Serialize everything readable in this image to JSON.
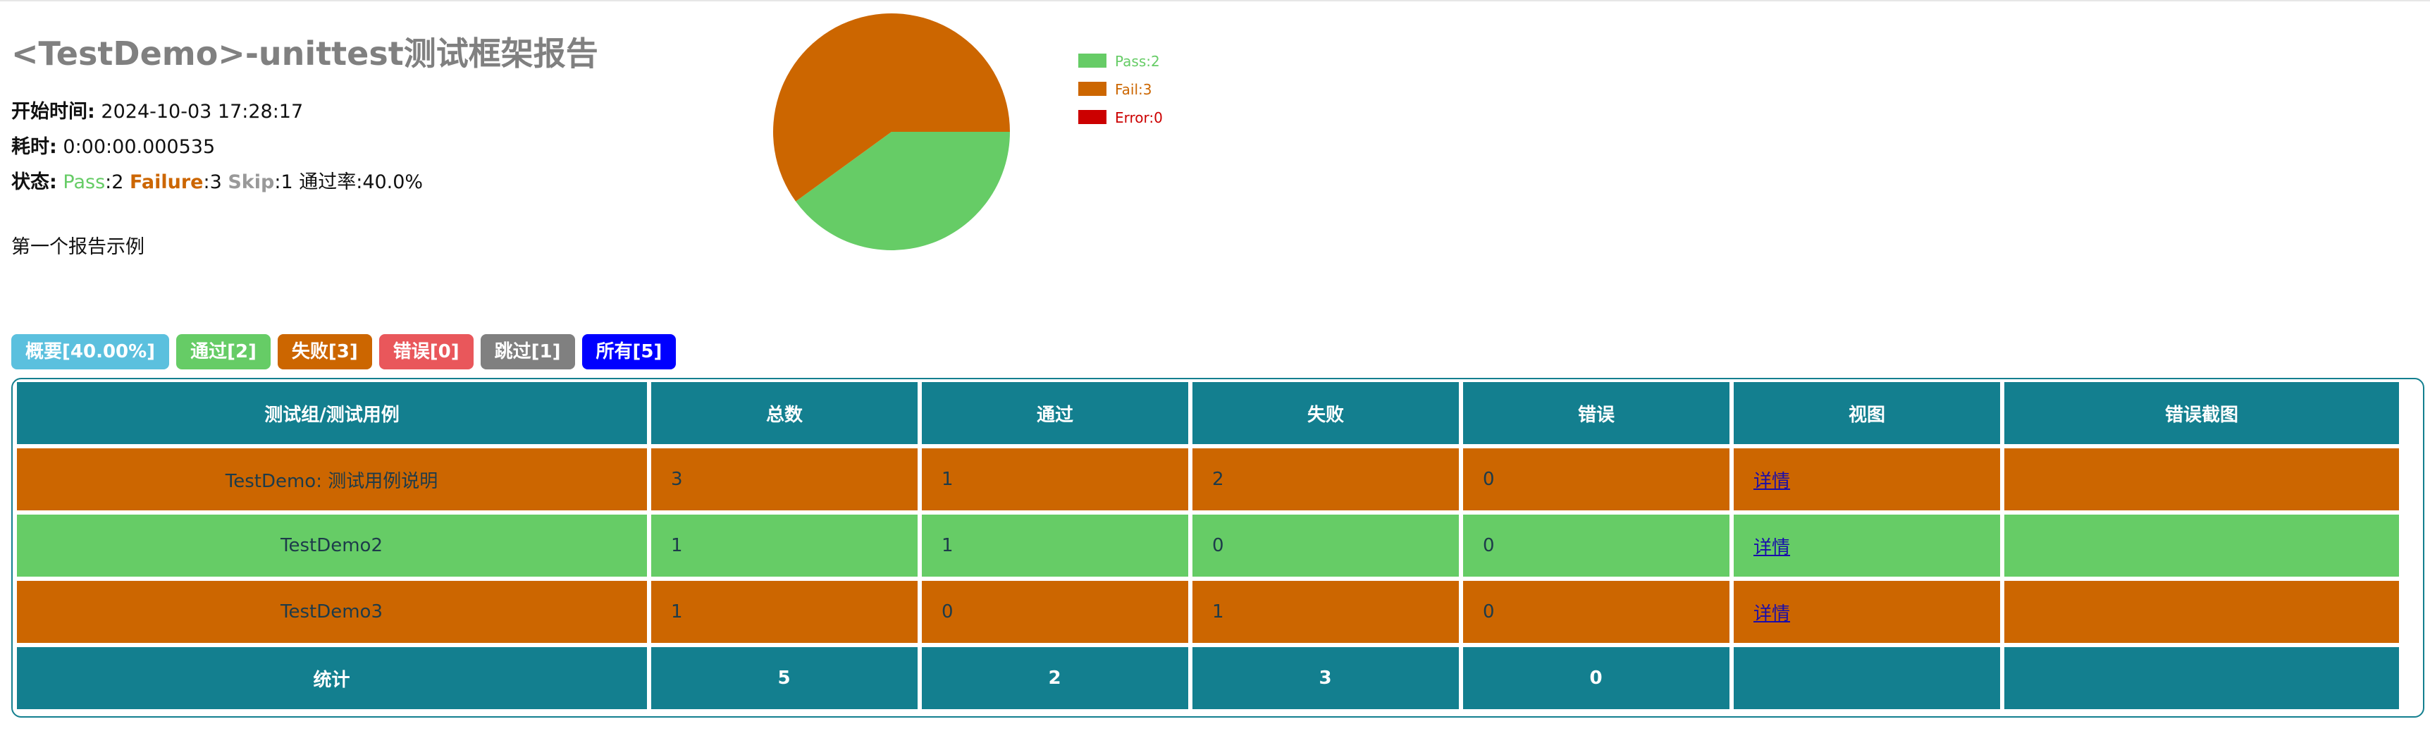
{
  "report": {
    "title": "<TestDemo>-unittest测试框架报告",
    "start_label": "开始时间:",
    "start_value": "2024-10-03 17:28:17",
    "duration_label": "耗时:",
    "duration_value": "0:00:00.000535",
    "status_label": "状态:",
    "status": {
      "pass_label": "Pass",
      "pass_value": ":2",
      "fail_label": "Failure",
      "fail_value": ":3",
      "skip_label": "Skip",
      "skip_value": ":1",
      "rate_text": "通过率:40.0%"
    },
    "description": "第一个报告示例"
  },
  "chart_data": {
    "type": "pie",
    "slices": [
      {
        "label": "Pass:2",
        "value": 2,
        "color": "#66cc66"
      },
      {
        "label": "Fail:3",
        "value": 3,
        "color": "#cc6600"
      },
      {
        "label": "Error:0",
        "value": 0,
        "color": "#cc0000"
      }
    ],
    "legend_position": "right"
  },
  "filters": [
    {
      "label": "概要[40.00%]",
      "color": "#5bc0de"
    },
    {
      "label": "通过[2]",
      "color": "#66cc66"
    },
    {
      "label": "失败[3]",
      "color": "#cc6600"
    },
    {
      "label": "错误[0]",
      "color": "#e9575b"
    },
    {
      "label": "跳过[1]",
      "color": "#808080"
    },
    {
      "label": "所有[5]",
      "color": "#0000ff"
    }
  ],
  "table": {
    "headers": [
      "测试组/测试用例",
      "总数",
      "通过",
      "失败",
      "错误",
      "视图",
      "错误截图"
    ],
    "rows": [
      {
        "name": "TestDemo: 测试用例说明",
        "total": "3",
        "pass": "1",
        "fail": "2",
        "error": "0",
        "view": "详情",
        "screenshot": "",
        "status": "fail"
      },
      {
        "name": "TestDemo2",
        "total": "1",
        "pass": "1",
        "fail": "0",
        "error": "0",
        "view": "详情",
        "screenshot": "",
        "status": "pass"
      },
      {
        "name": "TestDemo3",
        "total": "1",
        "pass": "0",
        "fail": "1",
        "error": "0",
        "view": "详情",
        "screenshot": "",
        "status": "fail"
      }
    ],
    "total_row": {
      "label": "统计",
      "total": "5",
      "pass": "2",
      "fail": "3",
      "error": "0",
      "view": "",
      "screenshot": ""
    }
  }
}
